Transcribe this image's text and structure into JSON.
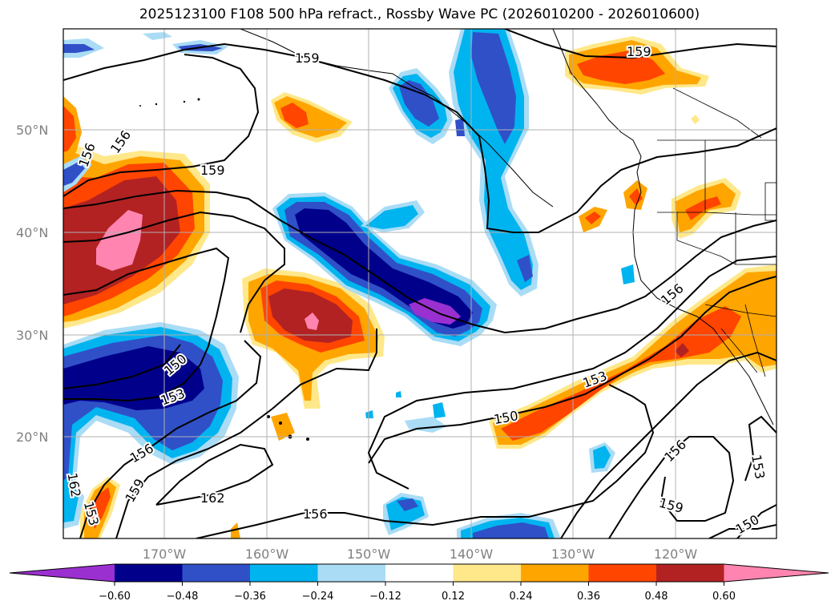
{
  "title": "2025123100 F108 500 hPa refract., Rossby Wave PC (2026010200 - 2026010600)",
  "lat_ticks": [
    "50°N",
    "40°N",
    "30°N",
    "20°N"
  ],
  "lon_ticks": [
    "170°W",
    "160°W",
    "150°W",
    "140°W",
    "130°W",
    "120°W"
  ],
  "contour_labels": [
    {
      "id": "c159a",
      "text": "159"
    },
    {
      "id": "c159b",
      "text": "159"
    },
    {
      "id": "c156a",
      "text": "156"
    },
    {
      "id": "c159c",
      "text": "159"
    },
    {
      "id": "c162a",
      "text": "162"
    },
    {
      "id": "c156b",
      "text": "156"
    },
    {
      "id": "c150a",
      "text": "150"
    },
    {
      "id": "c153a",
      "text": "153"
    },
    {
      "id": "c156c",
      "text": "156"
    },
    {
      "id": "c159d",
      "text": "159"
    },
    {
      "id": "c156d",
      "text": "156"
    },
    {
      "id": "c153b",
      "text": "153"
    },
    {
      "id": "c162b",
      "text": "162"
    },
    {
      "id": "c156e",
      "text": "156"
    },
    {
      "id": "c153c",
      "text": "153"
    },
    {
      "id": "c150b",
      "text": "150"
    },
    {
      "id": "c156f",
      "text": "156"
    },
    {
      "id": "c153d",
      "text": "153"
    },
    {
      "id": "c159e",
      "text": "159"
    },
    {
      "id": "c150c",
      "text": "150"
    }
  ],
  "colorbar": {
    "ticks": [
      "−0.60",
      "−0.48",
      "−0.36",
      "−0.24",
      "−0.12",
      "0.12",
      "0.24",
      "0.36",
      "0.48",
      "0.60"
    ],
    "colors": [
      "#9b30d0",
      "#00008b",
      "#3050c8",
      "#00b4f0",
      "#aadcf5",
      "#ffffff",
      "#ffe88a",
      "#ffa500",
      "#ff4500",
      "#b22222",
      "#ff85b0"
    ]
  },
  "colors": {
    "dark_purple": "#9b30d0",
    "navy": "#00008b",
    "royal_blue": "#3050c8",
    "sky_blue": "#00b4f0",
    "light_blue": "#aadcf5",
    "light_yellow": "#ffe88a",
    "orange": "#ffa500",
    "orange_red": "#ff4500",
    "firebrick": "#b22222",
    "pink": "#ff85b0"
  }
}
